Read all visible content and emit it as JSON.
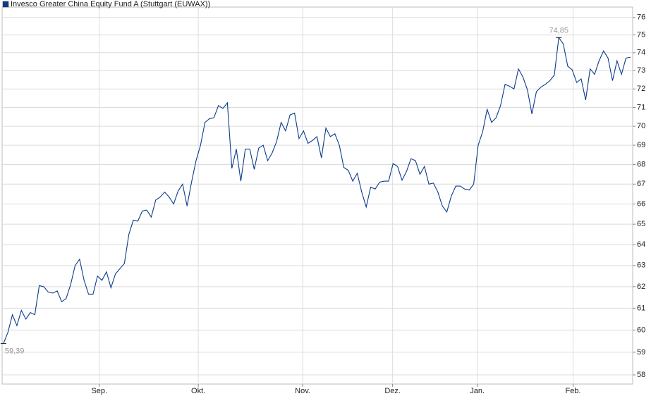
{
  "chart_data": {
    "type": "line",
    "series": [
      {
        "name": "Invesco Greater China Equity Fund A (Stuttgart (EUWAX))",
        "color": "#0b3b8c",
        "values": [
          59.39,
          59.9,
          60.7,
          60.2,
          60.9,
          60.5,
          60.8,
          60.7,
          62.05,
          62.0,
          61.75,
          61.7,
          61.8,
          61.3,
          61.45,
          62.1,
          63.0,
          63.3,
          62.3,
          61.65,
          61.65,
          62.5,
          62.3,
          62.7,
          61.95,
          62.6,
          62.85,
          63.1,
          64.5,
          65.2,
          65.15,
          65.65,
          65.7,
          65.35,
          66.2,
          66.35,
          66.6,
          66.35,
          66.0,
          66.65,
          67.0,
          65.9,
          67.1,
          68.2,
          69.0,
          70.2,
          70.4,
          70.45,
          71.1,
          70.95,
          71.25,
          67.8,
          68.8,
          67.15,
          68.8,
          68.8,
          67.75,
          68.85,
          69.0,
          68.2,
          68.6,
          69.2,
          70.2,
          69.75,
          70.6,
          70.7,
          69.35,
          69.75,
          69.1,
          69.25,
          69.45,
          68.35,
          69.9,
          69.45,
          69.6,
          69.0,
          67.85,
          67.7,
          67.15,
          67.55,
          66.6,
          65.85,
          66.85,
          66.75,
          67.1,
          67.15,
          67.15,
          68.05,
          67.9,
          67.2,
          67.65,
          68.3,
          68.2,
          67.5,
          67.9,
          67.0,
          67.05,
          66.6,
          65.9,
          65.6,
          66.4,
          66.9,
          66.9,
          66.75,
          66.7,
          67.0,
          69.0,
          69.7,
          70.9,
          70.2,
          70.45,
          71.1,
          72.25,
          72.15,
          72.0,
          73.1,
          72.65,
          71.95,
          70.65,
          71.85,
          72.1,
          72.25,
          72.45,
          72.75,
          74.85,
          74.5,
          73.25,
          73.05,
          72.35,
          72.55,
          71.4,
          73.1,
          72.8,
          73.55,
          74.1,
          73.7,
          72.45,
          73.55,
          72.8,
          73.7,
          73.75
        ]
      }
    ],
    "annotations": [
      {
        "value": 74.85,
        "label": "74,85"
      },
      {
        "value": 59.39,
        "label": "59,39"
      }
    ],
    "xlim": [
      -0.3,
      140.5
    ],
    "xticks": [
      {
        "value": 21.4,
        "label": "Sep."
      },
      {
        "value": 43.5,
        "label": "Okt."
      },
      {
        "value": 66.8,
        "label": "Nov."
      },
      {
        "value": 86.9,
        "label": "Dez."
      },
      {
        "value": 105.8,
        "label": "Jan."
      },
      {
        "value": 127.2,
        "label": "Feb."
      }
    ],
    "ylim": [
      57.6,
      76.6
    ],
    "yticks": [
      58,
      59,
      60,
      61,
      62,
      63,
      64,
      65,
      66,
      67,
      68,
      69,
      70,
      71,
      72,
      73,
      74,
      75,
      76
    ],
    "log_scale_y": true,
    "grid": true,
    "legend": "top-left"
  }
}
